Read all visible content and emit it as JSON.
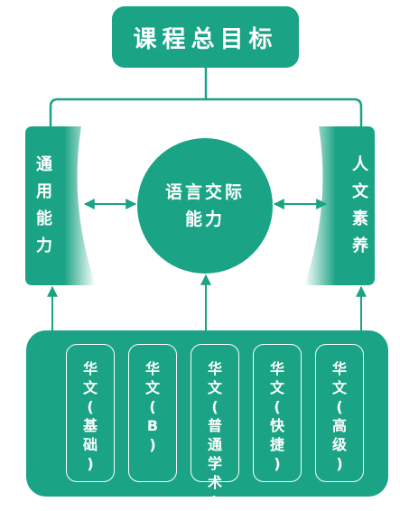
{
  "diagram": {
    "top": {
      "title": "课程总目标"
    },
    "center": {
      "line1": "语言交际",
      "line2": "能力"
    },
    "left": {
      "chars": [
        "通",
        "用",
        "能",
        "力"
      ]
    },
    "right": {
      "chars": [
        "人",
        "文",
        "素",
        "养"
      ]
    },
    "courses": [
      {
        "chars": [
          "华",
          "文",
          "(",
          "基",
          "础",
          ")"
        ]
      },
      {
        "chars": [
          "华",
          "文",
          "(",
          "B",
          ")"
        ]
      },
      {
        "chars": [
          "华",
          "文",
          "(",
          "普",
          "通",
          "学",
          "术",
          ")"
        ]
      },
      {
        "chars": [
          "华",
          "文",
          "(",
          "快",
          "捷",
          ")"
        ]
      },
      {
        "chars": [
          "华",
          "文",
          "(",
          "高",
          "级",
          ")"
        ]
      }
    ],
    "colors": {
      "primary": "#1aa384"
    }
  }
}
